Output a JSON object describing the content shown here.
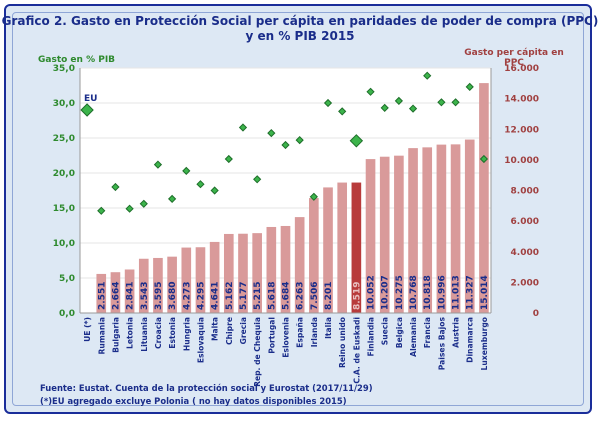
{
  "chart_data": {
    "type": "bar",
    "title_line1": "Grafico 2. Gasto en Protección Social per cápita en paridades de poder de compra (PPC)",
    "title_line2": "y en % PIB 2015",
    "ylabel_left": "Gasto en % PIB",
    "ylabel_right_line1": "Gasto per cápita en",
    "ylabel_right_line2": "PPC",
    "ylim_left": [
      0,
      35
    ],
    "ylim_right": [
      0,
      16000
    ],
    "left_ticks": [
      "0,0",
      "5,0",
      "10,0",
      "15,0",
      "20,0",
      "25,0",
      "30,0",
      "35,0"
    ],
    "right_ticks": [
      "0",
      "2.000",
      "4.000",
      "6.000",
      "8.000",
      "10.000",
      "12.000",
      "14.000",
      "16.000"
    ],
    "categories": [
      "UE (*)",
      "Rumania",
      "Bulgaria",
      "Letonia",
      "Lituania",
      "Croacia",
      "Estonia",
      "Hungria",
      "Eslovaquia",
      "Malta",
      "Chipre",
      "Grecia",
      "Rep. de Chequia",
      "Portugal",
      "Eslovenia",
      "España",
      "Irlanda",
      "Italia",
      "Reino unido",
      "C.A. de Euskadi",
      "Finlandia",
      "Suecia",
      "Belgica",
      "Alemania",
      "Francia",
      "Paises Bajos",
      "Austria",
      "Dinamarca",
      "Luxemburgo"
    ],
    "series": [
      {
        "name": "Gasto per cápita en PPC",
        "axis": "right",
        "values": [
          null,
          2551,
          2664,
          2841,
          3543,
          3595,
          3680,
          4273,
          4295,
          4641,
          5162,
          5177,
          5215,
          5618,
          5684,
          6263,
          7506,
          8201,
          8519,
          8519,
          10052,
          10207,
          10275,
          10768,
          10818,
          10996,
          11013,
          11327,
          15014
        ],
        "labels": [
          "",
          "2.551",
          "2.664",
          "2.841",
          "3.543",
          "3.595",
          "3.680",
          "4.273",
          "4.295",
          "4.641",
          "5.162",
          "5.177",
          "5.215",
          "5.618",
          "5.684",
          "6.263",
          "7.506",
          "8.201",
          "",
          "8.519",
          "10.052",
          "10.207",
          "10.275",
          "10.768",
          "10.818",
          "10.996",
          "11.013",
          "11.327",
          "15.014"
        ]
      },
      {
        "name": "Gasto en % PIB",
        "axis": "left",
        "values": [
          29.0,
          14.6,
          18.0,
          14.9,
          15.6,
          21.2,
          16.3,
          20.3,
          18.4,
          17.5,
          22.0,
          26.5,
          19.1,
          25.7,
          24.0,
          24.7,
          16.6,
          30.0,
          28.8,
          24.6,
          31.6,
          29.3,
          30.3,
          29.2,
          33.9,
          30.1,
          30.1,
          32.3,
          22.0
        ]
      }
    ],
    "eu_label": "EU",
    "colors": {
      "bar": "#d99a9a",
      "bar_highlight": "#b83b3b",
      "marker": "#3cb44b",
      "marker_edge": "#1e6e2a"
    }
  },
  "footer": {
    "source": "Fuente: Eustat. Cuenta de la protección social y Eurostat (2017/11/29)",
    "note": "(*)EU agregado excluye Polonia ( no hay datos disponibles 2015)"
  }
}
